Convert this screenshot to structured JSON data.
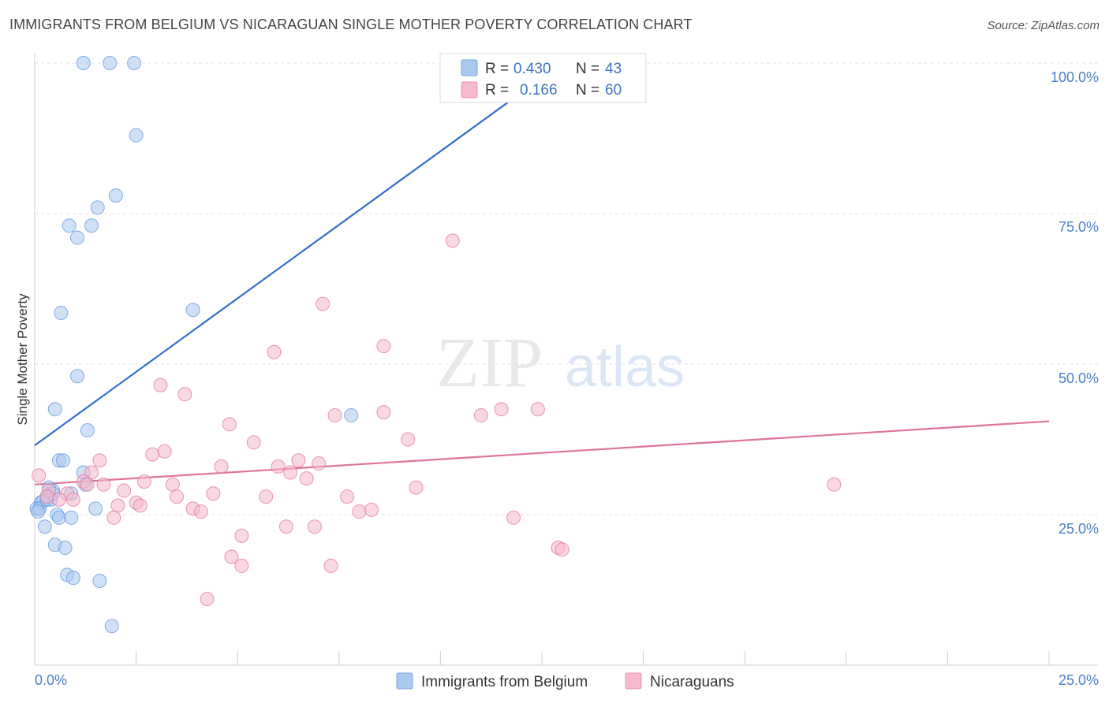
{
  "header": {
    "title": "IMMIGRANTS FROM BELGIUM VS NICARAGUAN SINGLE MOTHER POVERTY CORRELATION CHART",
    "source": "Source: ZipAtlas.com"
  },
  "watermark": {
    "zip": "ZIP",
    "atlas": "atlas"
  },
  "legend_top": {
    "rows": [
      {
        "r_label": "R =",
        "r_value": "0.430",
        "n_label": "N =",
        "n_value": "43",
        "color": "#a9c8f0"
      },
      {
        "r_label": "R =",
        "r_value": "0.166",
        "n_label": "N =",
        "n_value": "60",
        "color": "#f6b8cb"
      }
    ]
  },
  "legend_bottom": [
    {
      "label": "Immigrants from Belgium",
      "color": "#a9c8f0"
    },
    {
      "label": "Nicaraguans",
      "color": "#f6b8cb"
    }
  ],
  "chart_data": {
    "type": "scatter",
    "title": "IMMIGRANTS FROM BELGIUM VS NICARAGUAN SINGLE MOTHER POVERTY CORRELATION CHART",
    "xlabel": "",
    "ylabel": "Single Mother Poverty",
    "xlim": [
      0,
      25
    ],
    "ylim": [
      0,
      100
    ],
    "x_tick_labels": [
      "0.0%",
      "25.0%"
    ],
    "y_tick_labels": [
      "25.0%",
      "50.0%",
      "75.0%",
      "100.0%"
    ],
    "y_ticks": [
      25,
      50,
      75,
      100
    ],
    "grid": true,
    "legend_placement": "bottom",
    "series": [
      {
        "name": "Immigrants from Belgium",
        "color": "#5b93dc",
        "fill": "#a9c8f0",
        "points": [
          [
            1.2,
            100
          ],
          [
            1.85,
            100
          ],
          [
            2.45,
            100
          ],
          [
            14.5,
            99.8
          ],
          [
            2.5,
            88
          ],
          [
            2.0,
            78
          ],
          [
            1.55,
            76
          ],
          [
            0.85,
            73
          ],
          [
            1.4,
            73
          ],
          [
            1.05,
            71
          ],
          [
            0.65,
            58.5
          ],
          [
            3.9,
            59
          ],
          [
            1.05,
            48
          ],
          [
            0.5,
            42.5
          ],
          [
            7.8,
            41.5
          ],
          [
            1.3,
            39
          ],
          [
            0.6,
            34
          ],
          [
            0.7,
            34
          ],
          [
            1.2,
            32
          ],
          [
            1.25,
            30
          ],
          [
            0.35,
            29.5
          ],
          [
            0.45,
            29
          ],
          [
            0.9,
            28.5
          ],
          [
            0.3,
            28
          ],
          [
            0.4,
            27.5
          ],
          [
            0.15,
            27
          ],
          [
            0.2,
            27.2
          ],
          [
            0.05,
            26
          ],
          [
            0.12,
            26
          ],
          [
            1.5,
            26
          ],
          [
            0.55,
            25
          ],
          [
            0.6,
            24.5
          ],
          [
            0.9,
            24.5
          ],
          [
            0.25,
            23
          ],
          [
            0.5,
            20
          ],
          [
            0.75,
            19.5
          ],
          [
            0.8,
            15
          ],
          [
            0.95,
            14.5
          ],
          [
            1.6,
            14
          ],
          [
            1.9,
            6.5
          ],
          [
            0.08,
            25.5
          ],
          [
            0.3,
            27.5
          ],
          [
            0.45,
            28.5
          ]
        ]
      },
      {
        "name": "Nicaraguans",
        "color": "#e0739a",
        "fill": "#f6b8cb",
        "points": [
          [
            10.3,
            70.5
          ],
          [
            7.1,
            60
          ],
          [
            5.9,
            52
          ],
          [
            8.6,
            53
          ],
          [
            3.1,
            46.5
          ],
          [
            3.7,
            45
          ],
          [
            4.8,
            40
          ],
          [
            7.4,
            41.5
          ],
          [
            8.6,
            42
          ],
          [
            11.0,
            41.5
          ],
          [
            11.5,
            42.5
          ],
          [
            12.4,
            42.5
          ],
          [
            9.2,
            37.5
          ],
          [
            5.4,
            37
          ],
          [
            2.9,
            35
          ],
          [
            3.2,
            35.5
          ],
          [
            1.6,
            34
          ],
          [
            6.5,
            34
          ],
          [
            6.0,
            33
          ],
          [
            7.0,
            33.5
          ],
          [
            4.6,
            33
          ],
          [
            6.3,
            32
          ],
          [
            1.4,
            32
          ],
          [
            6.7,
            31
          ],
          [
            1.2,
            30.5
          ],
          [
            1.7,
            30
          ],
          [
            2.7,
            30.5
          ],
          [
            3.4,
            30
          ],
          [
            0.8,
            28.5
          ],
          [
            2.2,
            29
          ],
          [
            4.4,
            28.5
          ],
          [
            9.4,
            29.5
          ],
          [
            19.7,
            30
          ],
          [
            0.35,
            29
          ],
          [
            0.6,
            27.5
          ],
          [
            0.95,
            27.5
          ],
          [
            3.5,
            28
          ],
          [
            5.7,
            28
          ],
          [
            7.7,
            28
          ],
          [
            2.05,
            26.5
          ],
          [
            2.5,
            27
          ],
          [
            2.6,
            26.5
          ],
          [
            3.9,
            26
          ],
          [
            4.1,
            25.5
          ],
          [
            8.0,
            25.5
          ],
          [
            8.3,
            25.8
          ],
          [
            1.95,
            24.5
          ],
          [
            11.8,
            24.5
          ],
          [
            6.2,
            23
          ],
          [
            6.9,
            23
          ],
          [
            5.1,
            21.5
          ],
          [
            4.85,
            18
          ],
          [
            5.1,
            16.5
          ],
          [
            7.3,
            16.5
          ],
          [
            12.9,
            19.5
          ],
          [
            13.0,
            19.2
          ],
          [
            4.25,
            11
          ],
          [
            0.1,
            31.5
          ],
          [
            1.3,
            30
          ],
          [
            0.3,
            28
          ]
        ]
      }
    ],
    "trendlines": [
      {
        "series": "Immigrants from Belgium",
        "x": [
          0,
          13.0
        ],
        "y": [
          36.5,
          100
        ]
      },
      {
        "series": "Nicaraguans",
        "x": [
          0,
          25
        ],
        "y": [
          30.0,
          40.5
        ]
      }
    ]
  }
}
